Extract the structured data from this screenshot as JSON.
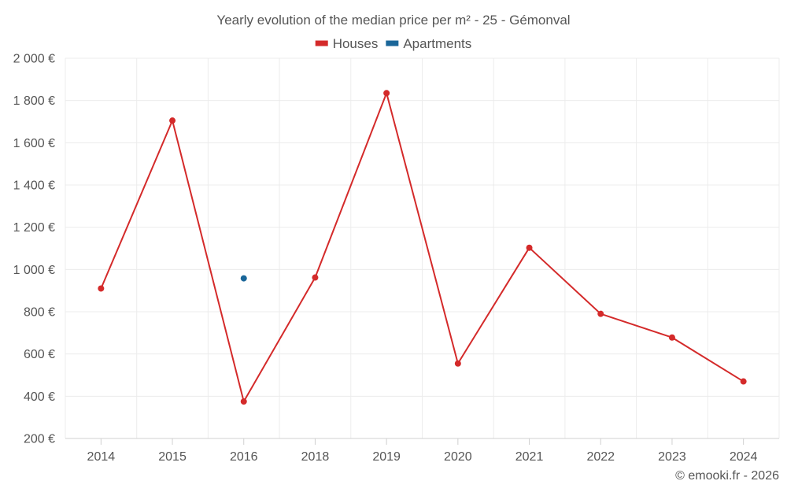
{
  "chart_data": {
    "type": "line",
    "title": "Yearly evolution of the median price per m² - 25 - Gémonval",
    "categories": [
      "2014",
      "2015",
      "2016",
      "2018",
      "2019",
      "2020",
      "2021",
      "2022",
      "2023",
      "2024"
    ],
    "ylim": [
      200,
      2000
    ],
    "yticks": [
      200,
      400,
      600,
      800,
      1000,
      1200,
      1400,
      1600,
      1800,
      2000
    ],
    "ytick_labels": [
      "200 €",
      "400 €",
      "600 €",
      "800 €",
      "1 000 €",
      "1 200 €",
      "1 400 €",
      "1 600 €",
      "1 800 €",
      "2 000 €"
    ],
    "grid": true,
    "legend_position": "top-center",
    "series": [
      {
        "name": "Houses",
        "color": "#d42a2a",
        "values": [
          910,
          1705,
          375,
          962,
          1835,
          555,
          1103,
          790,
          678,
          470
        ]
      },
      {
        "name": "Apartments",
        "color": "#1a6699",
        "values": [
          null,
          null,
          958,
          null,
          null,
          null,
          null,
          null,
          null,
          null
        ]
      }
    ]
  },
  "credit": "© emooki.fr - 2026"
}
